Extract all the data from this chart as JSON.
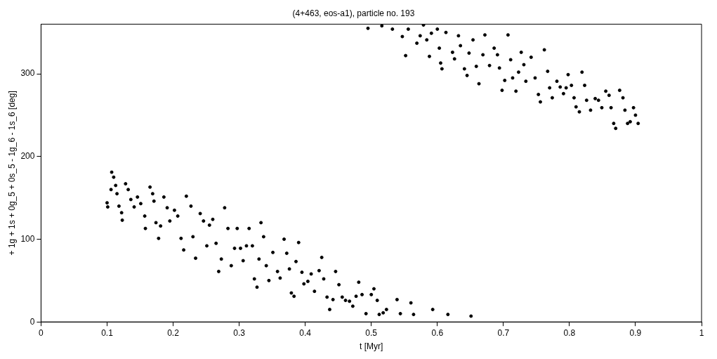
{
  "chart_data": {
    "type": "scatter",
    "title": "(4+463, eos-a1), particle no. 193",
    "xlabel": "t [Myr]",
    "ylabel": "+ 1g + 1s + 0g_5 + 0s_5 - 1g_6 - 1s_6 [deg]",
    "xlim": [
      0,
      1
    ],
    "xticks": [
      0,
      0.1,
      0.2,
      0.3,
      0.4,
      0.5,
      0.6,
      0.7,
      0.8,
      0.9,
      1
    ],
    "ylim": [
      0,
      360
    ],
    "yticks": [
      0,
      100,
      200,
      300
    ],
    "grid": false,
    "legend": false,
    "marker": "circle",
    "series": [
      {
        "color": "#000000",
        "x": [
          0.1,
          0.101,
          0.106,
          0.107,
          0.11,
          0.113,
          0.115,
          0.118,
          0.122,
          0.123,
          0.128,
          0.132,
          0.136,
          0.141,
          0.146,
          0.151,
          0.157,
          0.158,
          0.165,
          0.169,
          0.171,
          0.174,
          0.178,
          0.181,
          0.186,
          0.191,
          0.195,
          0.202,
          0.207,
          0.212,
          0.216,
          0.22,
          0.227,
          0.23,
          0.234,
          0.241,
          0.246,
          0.251,
          0.255,
          0.26,
          0.265,
          0.269,
          0.273,
          0.278,
          0.283,
          0.288,
          0.293,
          0.297,
          0.302,
          0.306,
          0.311,
          0.315,
          0.32,
          0.323,
          0.327,
          0.33,
          0.333,
          0.337,
          0.341,
          0.345,
          0.351,
          0.358,
          0.362,
          0.368,
          0.372,
          0.376,
          0.379,
          0.383,
          0.386,
          0.39,
          0.395,
          0.398,
          0.404,
          0.409,
          0.414,
          0.421,
          0.425,
          0.428,
          0.433,
          0.437,
          0.442,
          0.446,
          0.451,
          0.456,
          0.461,
          0.467,
          0.472,
          0.477,
          0.481,
          0.486,
          0.492,
          0.5,
          0.504,
          0.509,
          0.512,
          0.518,
          0.523,
          0.539,
          0.544,
          0.56,
          0.564,
          0.593,
          0.616,
          0.651,
          0.495,
          0.516,
          0.532,
          0.547,
          0.552,
          0.556,
          0.569,
          0.574,
          0.579,
          0.584,
          0.588,
          0.591,
          0.6,
          0.603,
          0.605,
          0.607,
          0.613,
          0.623,
          0.626,
          0.632,
          0.635,
          0.641,
          0.645,
          0.648,
          0.654,
          0.659,
          0.663,
          0.669,
          0.672,
          0.679,
          0.686,
          0.691,
          0.694,
          0.698,
          0.702,
          0.707,
          0.711,
          0.714,
          0.719,
          0.723,
          0.727,
          0.731,
          0.734,
          0.742,
          0.748,
          0.753,
          0.756,
          0.762,
          0.767,
          0.77,
          0.774,
          0.781,
          0.786,
          0.791,
          0.795,
          0.798,
          0.803,
          0.807,
          0.81,
          0.815,
          0.819,
          0.823,
          0.826,
          0.832,
          0.839,
          0.844,
          0.849,
          0.855,
          0.86,
          0.863,
          0.867,
          0.87,
          0.876,
          0.881,
          0.884,
          0.888,
          0.892,
          0.897,
          0.9,
          0.904
        ],
        "values": [
          144,
          139,
          160,
          181,
          175,
          165,
          155,
          140,
          132,
          123,
          167,
          160,
          148,
          139,
          151,
          143,
          128,
          113,
          163,
          155,
          146,
          120,
          101,
          116,
          151,
          138,
          122,
          135,
          128,
          101,
          87,
          152,
          140,
          103,
          77,
          131,
          122,
          92,
          117,
          124,
          95,
          61,
          76,
          138,
          113,
          68,
          89,
          113,
          89,
          74,
          92,
          113,
          92,
          52,
          42,
          76,
          120,
          103,
          68,
          50,
          84,
          61,
          53,
          100,
          83,
          64,
          35,
          31,
          73,
          96,
          60,
          46,
          49,
          58,
          37,
          62,
          78,
          52,
          30,
          15,
          27,
          61,
          45,
          30,
          26,
          25,
          19,
          31,
          48,
          33,
          10,
          33,
          40,
          26,
          9,
          11,
          15,
          27,
          10,
          23,
          9,
          15,
          9,
          7,
          355,
          358,
          354,
          345,
          322,
          354,
          337,
          346,
          359,
          341,
          321,
          349,
          354,
          331,
          313,
          306,
          350,
          326,
          318,
          346,
          334,
          306,
          298,
          325,
          341,
          309,
          288,
          323,
          347,
          310,
          331,
          323,
          307,
          280,
          292,
          347,
          317,
          295,
          279,
          302,
          326,
          311,
          291,
          320,
          295,
          275,
          266,
          329,
          303,
          283,
          271,
          291,
          284,
          276,
          283,
          299,
          286,
          271,
          260,
          254,
          302,
          286,
          268,
          256,
          270,
          268,
          259,
          279,
          274,
          259,
          240,
          234,
          280,
          271,
          256,
          240,
          242,
          259,
          250,
          240
        ]
      }
    ]
  }
}
